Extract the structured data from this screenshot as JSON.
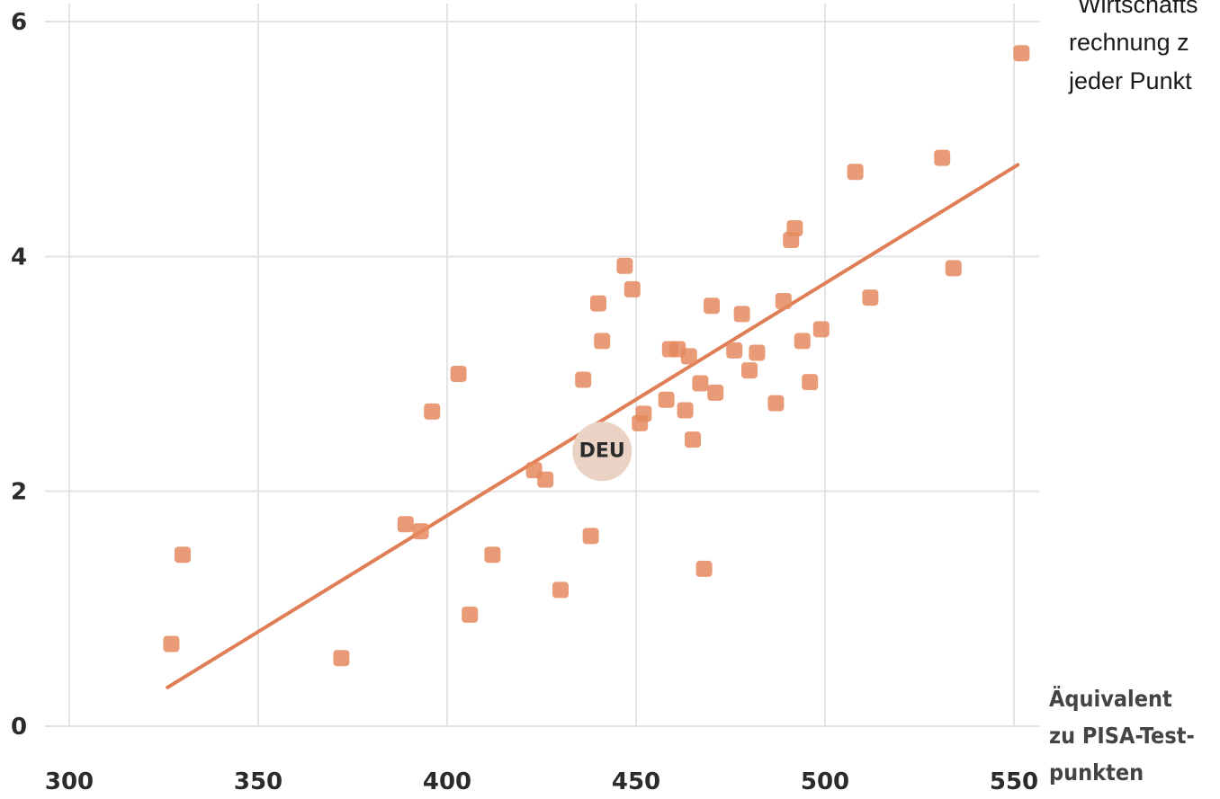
{
  "chart_data": {
    "type": "scatter",
    "title": "",
    "xlabel_lines": [
      "Äquivalent",
      "zu PISA-Test-",
      "punkten"
    ],
    "ylabel": "",
    "note_lines": [
      "Wirtschafts",
      "rechnung z",
      "jeder Punkt"
    ],
    "xlim": [
      300,
      550
    ],
    "ylim": [
      0,
      6
    ],
    "x_ticks": [
      300,
      350,
      400,
      450,
      500,
      550
    ],
    "y_ticks": [
      0,
      2,
      4,
      6
    ],
    "grid": true,
    "point_color": "#e58a5f",
    "trend_color": "#e07e55",
    "points": [
      {
        "x": 327,
        "y": 0.7
      },
      {
        "x": 330,
        "y": 1.46
      },
      {
        "x": 372,
        "y": 0.58
      },
      {
        "x": 389,
        "y": 1.72
      },
      {
        "x": 393,
        "y": 1.66
      },
      {
        "x": 396,
        "y": 2.68
      },
      {
        "x": 403,
        "y": 3.0
      },
      {
        "x": 406,
        "y": 0.95
      },
      {
        "x": 412,
        "y": 1.46
      },
      {
        "x": 423,
        "y": 2.18
      },
      {
        "x": 426,
        "y": 2.1
      },
      {
        "x": 430,
        "y": 1.16
      },
      {
        "x": 436,
        "y": 2.95
      },
      {
        "x": 438,
        "y": 1.62
      },
      {
        "x": 440,
        "y": 3.6
      },
      {
        "x": 441,
        "y": 3.28
      },
      {
        "x": 447,
        "y": 3.92
      },
      {
        "x": 449,
        "y": 3.72
      },
      {
        "x": 451,
        "y": 2.58
      },
      {
        "x": 452,
        "y": 2.66
      },
      {
        "x": 458,
        "y": 2.78
      },
      {
        "x": 459,
        "y": 3.21
      },
      {
        "x": 461,
        "y": 3.21
      },
      {
        "x": 463,
        "y": 2.69
      },
      {
        "x": 464,
        "y": 3.15
      },
      {
        "x": 465,
        "y": 2.44
      },
      {
        "x": 467,
        "y": 2.92
      },
      {
        "x": 468,
        "y": 1.34
      },
      {
        "x": 470,
        "y": 3.58
      },
      {
        "x": 471,
        "y": 2.84
      },
      {
        "x": 476,
        "y": 3.2
      },
      {
        "x": 478,
        "y": 3.51
      },
      {
        "x": 480,
        "y": 3.03
      },
      {
        "x": 482,
        "y": 3.18
      },
      {
        "x": 487,
        "y": 2.75
      },
      {
        "x": 489,
        "y": 3.62
      },
      {
        "x": 491,
        "y": 4.14
      },
      {
        "x": 492,
        "y": 4.24
      },
      {
        "x": 494,
        "y": 3.28
      },
      {
        "x": 496,
        "y": 2.93
      },
      {
        "x": 499,
        "y": 3.38
      },
      {
        "x": 508,
        "y": 4.72
      },
      {
        "x": 512,
        "y": 3.65
      },
      {
        "x": 531,
        "y": 4.84
      },
      {
        "x": 534,
        "y": 3.9
      },
      {
        "x": 552,
        "y": 5.73
      }
    ],
    "highlight": {
      "label": "DEU",
      "x": 441,
      "y": 2.34
    },
    "trendline": {
      "x1": 326,
      "y1": 0.33,
      "x2": 551,
      "y2": 4.78
    }
  }
}
